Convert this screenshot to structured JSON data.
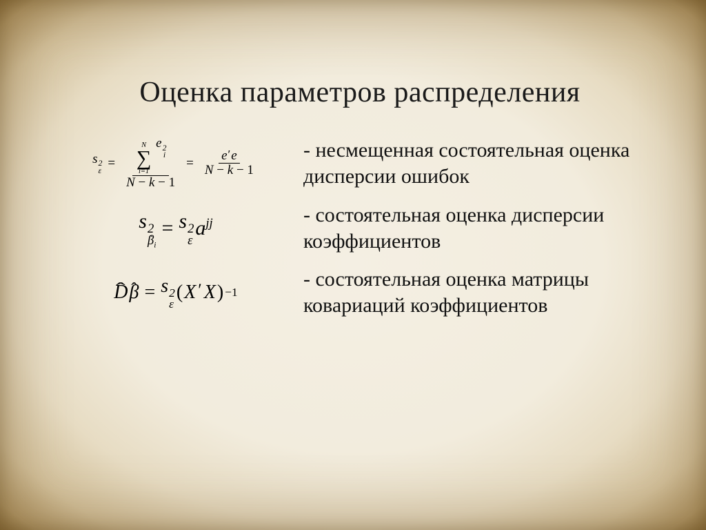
{
  "slide": {
    "title": "Оценка параметров распределения",
    "background_gradient": [
      "#f4efe3",
      "#f2ecdd",
      "#e7dcc3",
      "#d3c19c",
      "#b49b6c",
      "#8b6f3e"
    ],
    "title_fontsize": 42,
    "body_fontsize": 30,
    "font_family": "Times New Roman",
    "rows": [
      {
        "formula_parts": {
          "lhs_base": "s",
          "lhs_sup": "2",
          "lhs_sub": "ε",
          "eq": "=",
          "sum_upper": "N",
          "sum_lower": "i=1",
          "sum_body_base": "e",
          "sum_body_sup": "2",
          "sum_body_sub": "i",
          "den1_a": "N",
          "den1_op1": "−",
          "den1_b": "k",
          "den1_op2": "−",
          "den1_c": "1",
          "num2_a": "e",
          "num2_prime": "′",
          "num2_b": "e",
          "den2_a": "N",
          "den2_op1": "−",
          "den2_b": "k",
          "den2_op2": "−",
          "den2_c": "1"
        },
        "description": "- несмещенная состоятельная оценка дисперсии ошибок"
      },
      {
        "formula_parts": {
          "lhs_base": "s",
          "lhs_sup": "2",
          "lhs_sub_main": "β",
          "lhs_sub_sub": "i",
          "eq": "=",
          "r1_base": "s",
          "r1_sup": "2",
          "r1_sub": "ε",
          "r2_base": "a",
          "r2_sup": "jj"
        },
        "description": "- состоятельная оценка дисперсии коэффициентов"
      },
      {
        "formula_parts": {
          "lhs_a": "D",
          "lhs_b": "β",
          "eq": "=",
          "r1_base": "s",
          "r1_sup": "2",
          "r1_sub": "ε",
          "paren_open": "(",
          "x1": "X",
          "prime": "′",
          "x2": "X",
          "paren_close": ")",
          "exp": "−1"
        },
        "description": "- состоятельная оценка матрицы ковариаций коэффициентов"
      }
    ]
  }
}
